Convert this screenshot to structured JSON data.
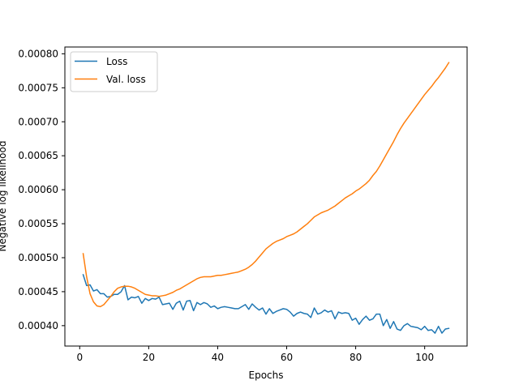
{
  "chart_data": {
    "type": "line",
    "title": "",
    "xlabel": "Epochs",
    "ylabel": "Negative log likelihood",
    "xlim": [
      -4.3,
      112.3
    ],
    "ylim": [
      0.00037,
      0.00081
    ],
    "xticks": [
      {
        "value": 0,
        "label": "0"
      },
      {
        "value": 20,
        "label": "20"
      },
      {
        "value": 40,
        "label": "40"
      },
      {
        "value": 60,
        "label": "60"
      },
      {
        "value": 80,
        "label": "80"
      },
      {
        "value": 100,
        "label": "100"
      }
    ],
    "yticks": [
      {
        "value": 0.0004,
        "label": "0.00040"
      },
      {
        "value": 0.00045,
        "label": "0.00045"
      },
      {
        "value": 0.0005,
        "label": "0.00050"
      },
      {
        "value": 0.00055,
        "label": "0.00055"
      },
      {
        "value": 0.0006,
        "label": "0.00060"
      },
      {
        "value": 0.00065,
        "label": "0.00065"
      },
      {
        "value": 0.0007,
        "label": "0.00070"
      },
      {
        "value": 0.00075,
        "label": "0.00075"
      },
      {
        "value": 0.0008,
        "label": "0.00080"
      }
    ],
    "grid": false,
    "legend_position": "top-left",
    "x": [
      1,
      2,
      3,
      4,
      5,
      6,
      7,
      8,
      9,
      10,
      11,
      12,
      13,
      14,
      15,
      16,
      17,
      18,
      19,
      20,
      21,
      22,
      23,
      24,
      25,
      26,
      27,
      28,
      29,
      30,
      31,
      32,
      33,
      34,
      35,
      36,
      37,
      38,
      39,
      40,
      41,
      42,
      43,
      44,
      45,
      46,
      47,
      48,
      49,
      50,
      51,
      52,
      53,
      54,
      55,
      56,
      57,
      58,
      59,
      60,
      61,
      62,
      63,
      64,
      65,
      66,
      67,
      68,
      69,
      70,
      71,
      72,
      73,
      74,
      75,
      76,
      77,
      78,
      79,
      80,
      81,
      82,
      83,
      84,
      85,
      86,
      87,
      88,
      89,
      90,
      91,
      92,
      93,
      94,
      95,
      96,
      97,
      98,
      99,
      100,
      101,
      102,
      103,
      104,
      105,
      106,
      107
    ],
    "series": [
      {
        "name": "Loss",
        "color": "#1f77b4",
        "values": [
          0.000475,
          0.000459,
          0.00046,
          0.000451,
          0.000453,
          0.000447,
          0.000447,
          0.000442,
          0.000443,
          0.000446,
          0.000446,
          0.00045,
          0.000459,
          0.000438,
          0.000442,
          0.000441,
          0.000443,
          0.000433,
          0.00044,
          0.000437,
          0.00044,
          0.000439,
          0.000442,
          0.000431,
          0.000432,
          0.000433,
          0.000424,
          0.000433,
          0.000436,
          0.000423,
          0.000436,
          0.000437,
          0.000422,
          0.000434,
          0.000431,
          0.000434,
          0.000432,
          0.000427,
          0.000429,
          0.000425,
          0.000427,
          0.000428,
          0.000427,
          0.000426,
          0.000425,
          0.000425,
          0.000428,
          0.000431,
          0.000424,
          0.000432,
          0.000427,
          0.000423,
          0.000426,
          0.000417,
          0.000425,
          0.000418,
          0.000421,
          0.000423,
          0.000425,
          0.000424,
          0.00042,
          0.000414,
          0.000418,
          0.00042,
          0.000418,
          0.000417,
          0.000412,
          0.000426,
          0.000417,
          0.000419,
          0.000423,
          0.00042,
          0.000422,
          0.00041,
          0.00042,
          0.000418,
          0.000419,
          0.000418,
          0.000408,
          0.000411,
          0.000402,
          0.000409,
          0.000414,
          0.000408,
          0.00041,
          0.000417,
          0.000417,
          0.0004,
          0.000409,
          0.000396,
          0.000406,
          0.000395,
          0.000393,
          0.0004,
          0.000403,
          0.000399,
          0.000398,
          0.000397,
          0.000394,
          0.000399,
          0.000393,
          0.000394,
          0.000389,
          0.000399,
          0.000389,
          0.000395,
          0.000396
        ]
      },
      {
        "name": "Val. loss",
        "color": "#ff7f0e",
        "values": [
          0.000506,
          0.000472,
          0.000447,
          0.000435,
          0.000429,
          0.000428,
          0.000431,
          0.000437,
          0.000443,
          0.00045,
          0.000455,
          0.000457,
          0.000458,
          0.000458,
          0.000457,
          0.000455,
          0.000452,
          0.000449,
          0.000446,
          0.000445,
          0.000444,
          0.000444,
          0.000443,
          0.000444,
          0.000445,
          0.000447,
          0.000449,
          0.000452,
          0.000454,
          0.000457,
          0.00046,
          0.000463,
          0.000466,
          0.000469,
          0.000471,
          0.000472,
          0.000472,
          0.000472,
          0.000473,
          0.000474,
          0.000474,
          0.000475,
          0.000476,
          0.000477,
          0.000478,
          0.000479,
          0.000481,
          0.000483,
          0.000486,
          0.00049,
          0.000495,
          0.000501,
          0.000507,
          0.000513,
          0.000517,
          0.000521,
          0.000524,
          0.000526,
          0.000528,
          0.000531,
          0.000533,
          0.000535,
          0.000538,
          0.000542,
          0.000546,
          0.00055,
          0.000555,
          0.00056,
          0.000563,
          0.000566,
          0.000568,
          0.00057,
          0.000573,
          0.000576,
          0.00058,
          0.000584,
          0.000588,
          0.000591,
          0.000594,
          0.000598,
          0.000601,
          0.000605,
          0.000609,
          0.000614,
          0.000621,
          0.000627,
          0.000635,
          0.000644,
          0.000653,
          0.000662,
          0.000671,
          0.000681,
          0.00069,
          0.000698,
          0.000705,
          0.000712,
          0.000719,
          0.000726,
          0.000733,
          0.00074,
          0.000746,
          0.000752,
          0.000759,
          0.000765,
          0.000772,
          0.000779,
          0.000787
        ]
      }
    ]
  }
}
